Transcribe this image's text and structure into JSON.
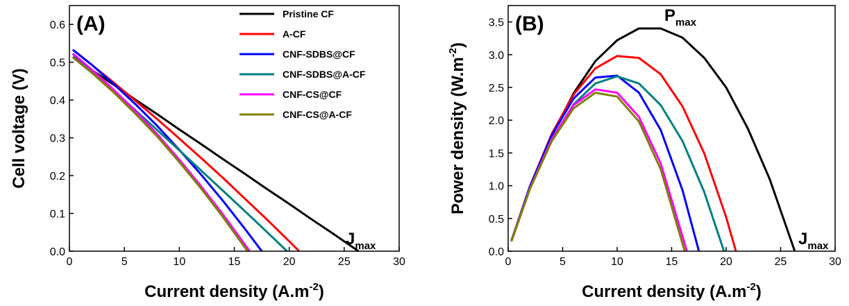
{
  "chart_data": [
    {
      "type": "line",
      "title": "(A)",
      "xlabel": "Current density (A.m",
      "xlabel_sup": "-2",
      "xlabel_end": ")",
      "ylabel": "Cell voltage (V)",
      "xlim": [
        0,
        30
      ],
      "ylim": [
        0,
        0.65
      ],
      "xticks": [
        0,
        5,
        10,
        15,
        20,
        25,
        30
      ],
      "yticks": [
        {
          "value": 0,
          "label": "0.0"
        },
        0.1,
        0.2,
        0.3,
        0.4,
        0.5,
        0.6
      ],
      "legend": "top-right",
      "annotations": [
        {
          "text": "J",
          "sub": "max"
        }
      ],
      "series": [
        {
          "name": "Pristine CF",
          "color": "#000000",
          "x": [
            0.3,
            2,
            4,
            6,
            8,
            10,
            12,
            14,
            16,
            18,
            20,
            22,
            24,
            26.3
          ],
          "values": [
            0.514,
            0.48,
            0.441,
            0.401,
            0.362,
            0.322,
            0.283,
            0.243,
            0.204,
            0.164,
            0.125,
            0.085,
            0.046,
            0
          ]
        },
        {
          "name": "A-CF",
          "color": "#ff0000",
          "x": [
            0.3,
            2,
            4,
            6,
            8,
            10,
            12,
            14,
            16,
            18,
            20,
            20.9
          ],
          "values": [
            0.533,
            0.494,
            0.447,
            0.398,
            0.349,
            0.298,
            0.246,
            0.193,
            0.138,
            0.083,
            0.026,
            0
          ]
        },
        {
          "name": "CNF-SDBS@CF",
          "color": "#0000ff",
          "x": [
            0.3,
            2,
            4,
            6,
            8,
            10,
            12,
            14,
            16,
            17.5
          ],
          "values": [
            0.533,
            0.494,
            0.443,
            0.389,
            0.331,
            0.268,
            0.202,
            0.132,
            0.058,
            0
          ]
        },
        {
          "name": "CNF-SDBS@A-CF",
          "color": "#008080",
          "x": [
            0.3,
            2,
            4,
            6,
            8,
            10,
            12,
            14,
            16,
            18,
            19.8
          ],
          "values": [
            0.522,
            0.478,
            0.426,
            0.373,
            0.32,
            0.267,
            0.213,
            0.159,
            0.105,
            0.05,
            0
          ]
        },
        {
          "name": "CNF-CS@CF",
          "color": "#ff00ff",
          "x": [
            0.3,
            2,
            4,
            6,
            8,
            10,
            12,
            14,
            16.4
          ],
          "values": [
            0.523,
            0.481,
            0.428,
            0.371,
            0.309,
            0.242,
            0.171,
            0.096,
            0
          ]
        },
        {
          "name": "CNF-CS@A-CF",
          "color": "#808000",
          "x": [
            0.3,
            2,
            4,
            6,
            8,
            10,
            12,
            14,
            16.2
          ],
          "values": [
            0.513,
            0.473,
            0.421,
            0.364,
            0.303,
            0.236,
            0.165,
            0.089,
            0
          ]
        }
      ]
    },
    {
      "type": "line",
      "title": "(B)",
      "xlabel": "Current density (A.m",
      "xlabel_sup": "-2",
      "xlabel_end": ")",
      "ylabel": "Power density (W.m",
      "ylabel_sup": "-2",
      "ylabel_end": ")",
      "xlim": [
        0,
        30
      ],
      "ylim": [
        0,
        3.75
      ],
      "xticks": [
        0,
        5,
        10,
        15,
        20,
        25,
        30
      ],
      "yticks": [
        {
          "value": 0,
          "label": "0.0"
        },
        0.5,
        {
          "value": 1,
          "label": "1.0"
        },
        1.5,
        {
          "value": 2,
          "label": "2.0"
        },
        2.5,
        {
          "value": 3,
          "label": "3.0"
        },
        3.5
      ],
      "annotations": [
        {
          "text": "P",
          "sub": "max"
        },
        {
          "text": "J",
          "sub": "max"
        }
      ],
      "series": [
        {
          "name": "Pristine CF",
          "color": "#000000",
          "x": [
            0.3,
            2,
            4,
            6,
            8,
            10,
            12,
            14,
            16,
            18,
            20,
            22,
            24,
            26.3
          ],
          "values": [
            0.15,
            0.96,
            1.76,
            2.41,
            2.9,
            3.22,
            3.4,
            3.4,
            3.26,
            2.95,
            2.5,
            1.87,
            1.1,
            0
          ]
        },
        {
          "name": "A-CF",
          "color": "#ff0000",
          "x": [
            0.3,
            2,
            4,
            6,
            8,
            10,
            12,
            14,
            16,
            18,
            20,
            20.9
          ],
          "values": [
            0.16,
            0.99,
            1.79,
            2.39,
            2.79,
            2.98,
            2.95,
            2.7,
            2.21,
            1.49,
            0.52,
            0
          ]
        },
        {
          "name": "CNF-SDBS@CF",
          "color": "#0000ff",
          "x": [
            0.3,
            2,
            4,
            6,
            8,
            10,
            12,
            14,
            16,
            17.5
          ],
          "values": [
            0.16,
            0.99,
            1.77,
            2.33,
            2.65,
            2.68,
            2.42,
            1.85,
            0.93,
            0
          ]
        },
        {
          "name": "CNF-SDBS@A-CF",
          "color": "#008080",
          "x": [
            0.3,
            2,
            4,
            6,
            8,
            10,
            12,
            14,
            16,
            18,
            19.8
          ],
          "values": [
            0.16,
            0.96,
            1.7,
            2.24,
            2.56,
            2.67,
            2.56,
            2.23,
            1.68,
            0.9,
            0
          ]
        },
        {
          "name": "CNF-CS@CF",
          "color": "#ff00ff",
          "x": [
            0.3,
            2,
            4,
            6,
            8,
            10,
            12,
            14,
            16.4
          ],
          "values": [
            0.16,
            0.96,
            1.71,
            2.23,
            2.47,
            2.42,
            2.05,
            1.34,
            0
          ]
        },
        {
          "name": "CNF-CS@A-CF",
          "color": "#808000",
          "x": [
            0.3,
            2,
            4,
            6,
            8,
            10,
            12,
            14,
            16.2
          ],
          "values": [
            0.15,
            0.95,
            1.68,
            2.18,
            2.42,
            2.36,
            1.98,
            1.25,
            0
          ]
        }
      ]
    }
  ]
}
